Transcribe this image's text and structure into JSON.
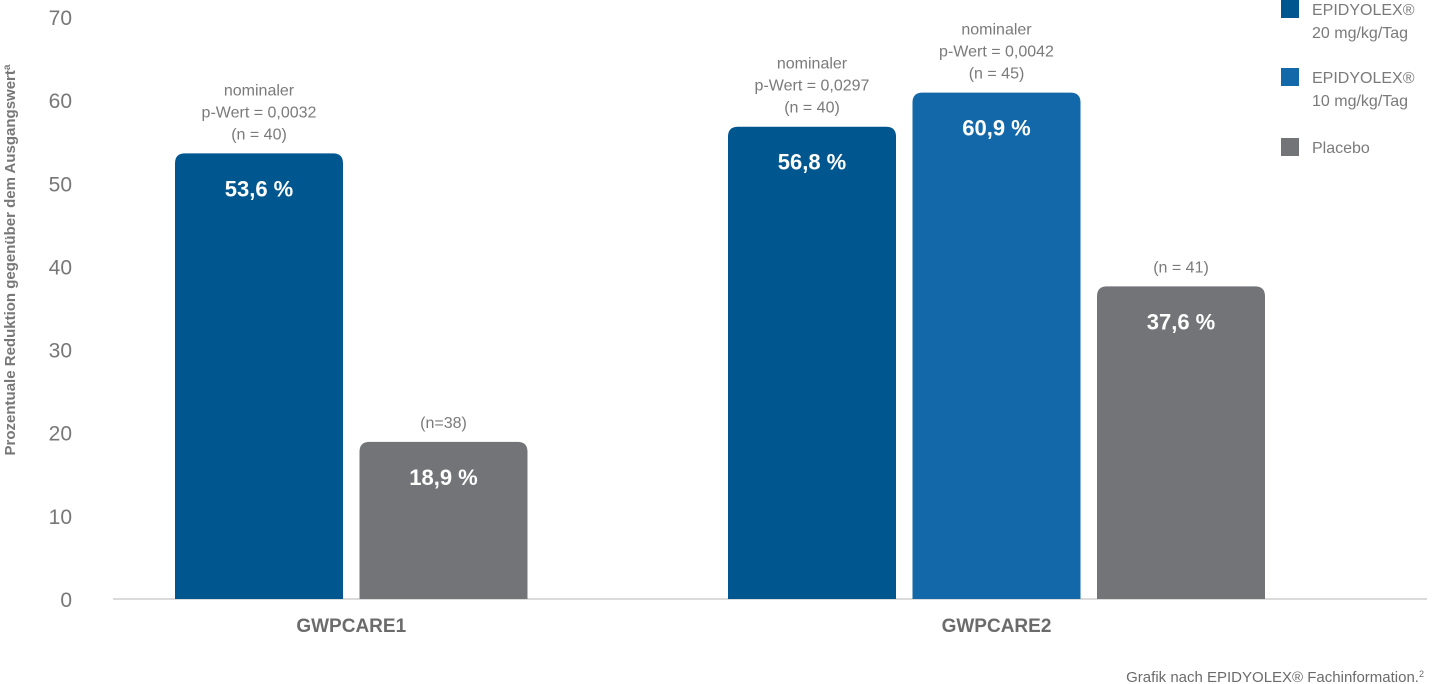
{
  "chart_data": {
    "type": "bar",
    "ylabel": "Prozentuale Reduktion gegenüber dem Ausgangswert",
    "ylabel_sup": "a",
    "ylim": [
      0,
      70
    ],
    "yticks": [
      0,
      10,
      20,
      30,
      40,
      50,
      60,
      70
    ],
    "categories": [
      "GWPCARE1",
      "GWPCARE2"
    ],
    "grid": false,
    "legend_position": "top-right",
    "series": [
      {
        "name_lines": [
          "EPIDYOLEX®",
          "20 mg/kg/Tag"
        ],
        "color": "#00568f",
        "values": [
          53.6,
          56.8
        ],
        "labels": [
          "53,6 %",
          "56,8 %"
        ],
        "annotations": [
          [
            "nominaler",
            "p-Wert = 0,0032",
            "(n = 40)"
          ],
          [
            "nominaler",
            "p-Wert = 0,0297",
            "(n = 40)"
          ]
        ]
      },
      {
        "name_lines": [
          "EPIDYOLEX®",
          "10 mg/kg/Tag"
        ],
        "color": "#1268a8",
        "values": [
          null,
          60.9
        ],
        "labels": [
          null,
          "60,9 %"
        ],
        "annotations": [
          null,
          [
            "nominaler",
            "p-Wert = 0,0042",
            "(n = 45)"
          ]
        ]
      },
      {
        "name_lines": [
          "Placebo"
        ],
        "color": "#727477",
        "values": [
          18.9,
          37.6
        ],
        "labels": [
          "18,9 %",
          "37,6 %"
        ],
        "annotations": [
          [
            "(n=38)"
          ],
          [
            "(n = 41)"
          ]
        ]
      }
    ]
  },
  "footer": {
    "source": "Grafik nach EPIDYOLEX® Fachinformation.",
    "source_sup": "2"
  }
}
